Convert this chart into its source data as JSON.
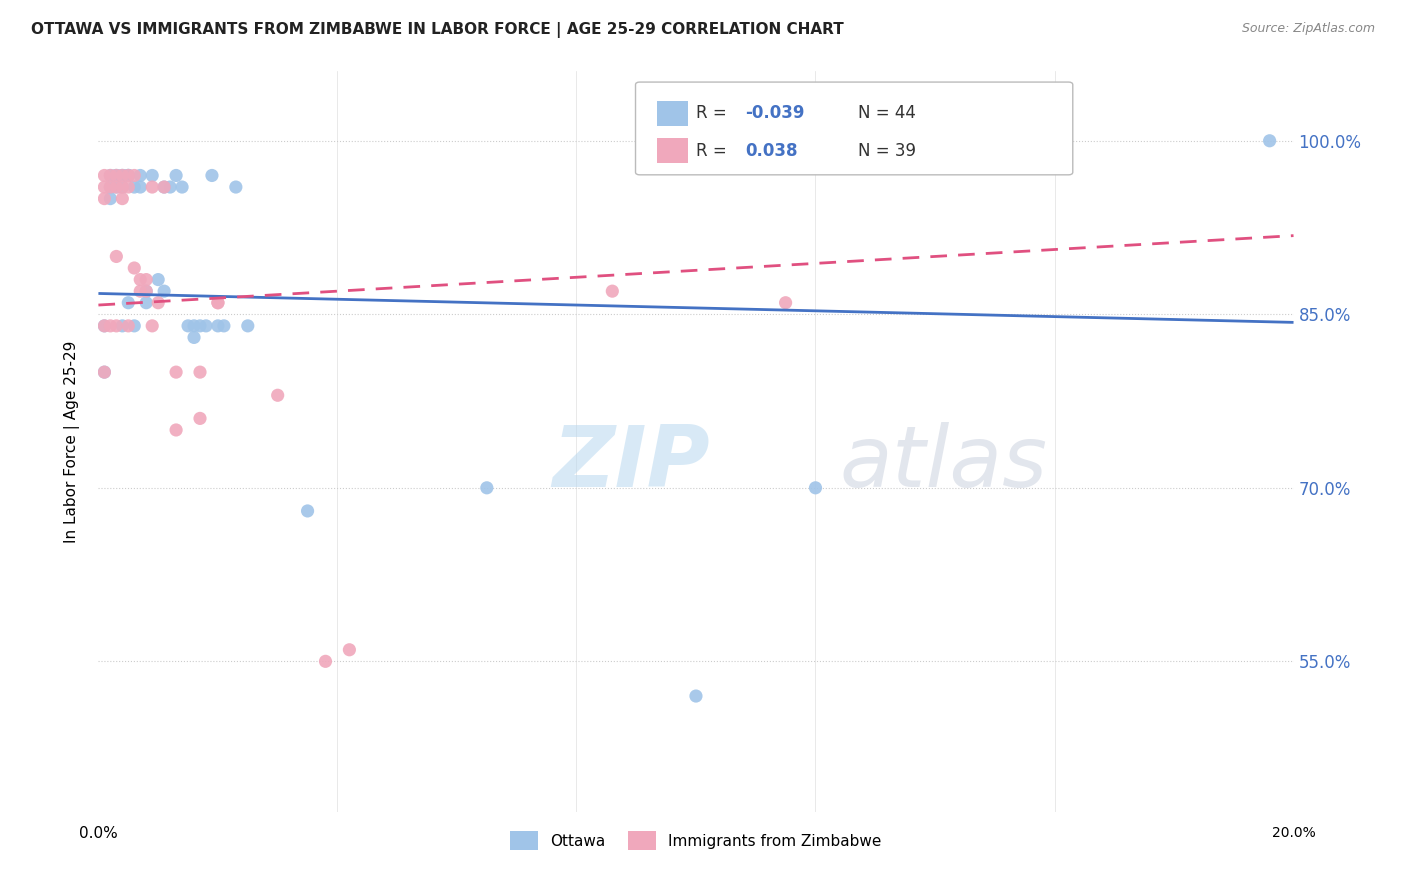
{
  "title": "OTTAWA VS IMMIGRANTS FROM ZIMBABWE IN LABOR FORCE | AGE 25-29 CORRELATION CHART",
  "source": "Source: ZipAtlas.com",
  "ylabel": "In Labor Force | Age 25-29",
  "watermark_zip": "ZIP",
  "watermark_atlas": "atlas",
  "xlim": [
    0.0,
    0.2
  ],
  "ylim": [
    0.42,
    1.06
  ],
  "ottawa_color": "#a0c4e8",
  "zimbabwe_color": "#f0a8bc",
  "trendline_ottawa_color": "#4472c4",
  "trendline_zimbabwe_color": "#e05080",
  "trendline_ottawa_y0": 0.868,
  "trendline_ottawa_y1": 0.843,
  "trendline_zimbabwe_y0": 0.858,
  "trendline_zimbabwe_y1": 0.918,
  "ytick_vals": [
    0.55,
    0.7,
    0.85,
    1.0
  ],
  "ytick_labels": [
    "55.0%",
    "70.0%",
    "85.0%",
    "100.0%"
  ],
  "legend_R_ottawa": "-0.039",
  "legend_N_ottawa": "44",
  "legend_R_zimbabwe": "0.038",
  "legend_N_zimbabwe": "39",
  "ottawa_scatter_x": [
    0.001,
    0.001,
    0.002,
    0.002,
    0.002,
    0.003,
    0.003,
    0.003,
    0.004,
    0.004,
    0.004,
    0.004,
    0.005,
    0.005,
    0.005,
    0.005,
    0.006,
    0.006,
    0.007,
    0.007,
    0.008,
    0.008,
    0.009,
    0.01,
    0.011,
    0.011,
    0.012,
    0.013,
    0.014,
    0.015,
    0.016,
    0.016,
    0.017,
    0.018,
    0.019,
    0.02,
    0.021,
    0.023,
    0.025,
    0.035,
    0.065,
    0.1,
    0.12,
    0.196
  ],
  "ottawa_scatter_y": [
    0.84,
    0.8,
    0.97,
    0.96,
    0.95,
    0.97,
    0.97,
    0.96,
    0.97,
    0.97,
    0.96,
    0.84,
    0.97,
    0.97,
    0.97,
    0.86,
    0.96,
    0.84,
    0.97,
    0.96,
    0.87,
    0.86,
    0.97,
    0.88,
    0.87,
    0.96,
    0.96,
    0.97,
    0.96,
    0.84,
    0.84,
    0.83,
    0.84,
    0.84,
    0.97,
    0.84,
    0.84,
    0.96,
    0.84,
    0.68,
    0.7,
    0.52,
    0.7,
    1.0
  ],
  "zimbabwe_scatter_x": [
    0.001,
    0.001,
    0.001,
    0.001,
    0.001,
    0.002,
    0.002,
    0.002,
    0.003,
    0.003,
    0.003,
    0.003,
    0.004,
    0.004,
    0.004,
    0.005,
    0.005,
    0.005,
    0.006,
    0.006,
    0.007,
    0.007,
    0.008,
    0.008,
    0.009,
    0.009,
    0.01,
    0.011,
    0.013,
    0.013,
    0.017,
    0.017,
    0.02,
    0.02,
    0.03,
    0.038,
    0.042,
    0.086,
    0.115
  ],
  "zimbabwe_scatter_y": [
    0.97,
    0.96,
    0.95,
    0.84,
    0.8,
    0.97,
    0.96,
    0.84,
    0.97,
    0.96,
    0.9,
    0.84,
    0.97,
    0.96,
    0.95,
    0.97,
    0.96,
    0.84,
    0.97,
    0.89,
    0.88,
    0.87,
    0.88,
    0.87,
    0.96,
    0.84,
    0.86,
    0.96,
    0.8,
    0.75,
    0.8,
    0.76,
    0.86,
    0.86,
    0.78,
    0.55,
    0.56,
    0.87,
    0.86
  ]
}
